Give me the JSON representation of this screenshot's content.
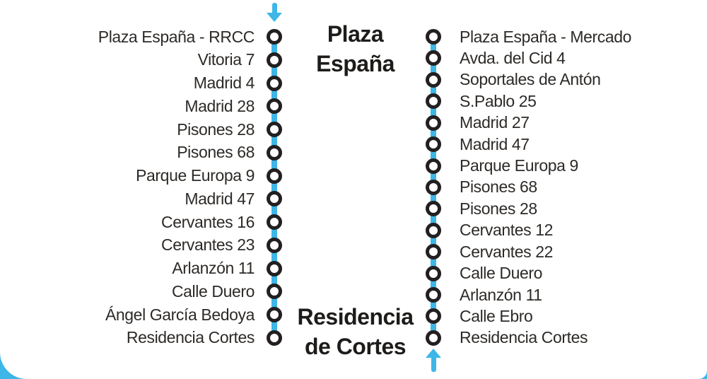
{
  "diagram": {
    "terminus_top_label": "Plaza\nEspaña",
    "terminus_bottom_label": "Residencia\nde Cortes",
    "outbound": {
      "direction": "down",
      "stops": [
        "Plaza España - RRCC",
        "Vitoria 7",
        "Madrid 4",
        "Madrid 28",
        "Pisones 28",
        "Pisones 68",
        "Parque Europa 9",
        "Madrid 47",
        "Cervantes 16",
        "Cervantes 23",
        "Arlanzón 11",
        "Calle Duero",
        "Ángel García Bedoya",
        "Residencia Cortes"
      ]
    },
    "inbound": {
      "direction": "up",
      "stops": [
        "Plaza España - Mercado",
        "Avda. del Cid 4",
        "Soportales de Antón",
        "S.Pablo 25",
        "Madrid 27",
        "Madrid 47",
        "Parque Europa 9",
        "Pisones 68",
        "Pisones 28",
        "Cervantes 12",
        "Cervantes 22",
        "Calle Duero",
        "Arlanzón 11",
        "Calle Ebro",
        "Residencia Cortes"
      ]
    },
    "colors": {
      "line_blue": "#3eb6e7",
      "marker_ring": "#231f20",
      "label_text": "#2d2a27",
      "terminus_text": "#1d1c1a",
      "background": "#ffffff"
    }
  }
}
